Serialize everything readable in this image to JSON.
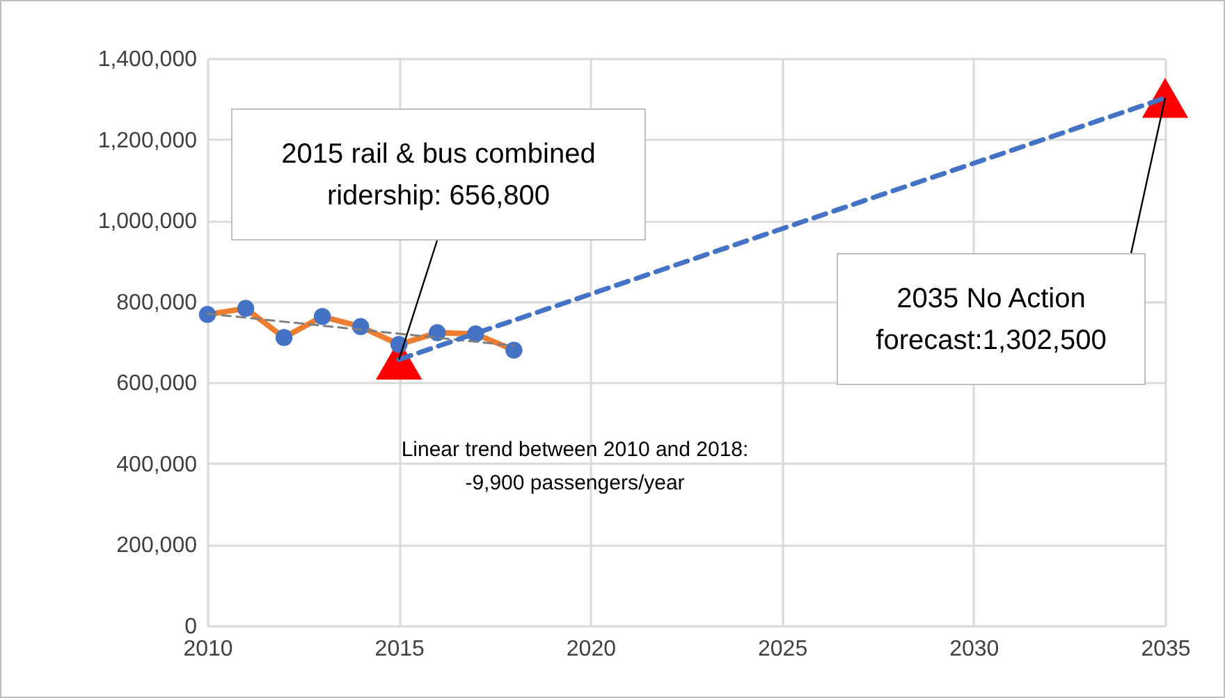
{
  "chart_data": {
    "type": "line",
    "xlim": [
      2010,
      2035
    ],
    "xticks": [
      2010,
      2015,
      2020,
      2025,
      2030,
      2035
    ],
    "ylim": [
      0,
      1400000
    ],
    "yticks": [
      0,
      {
        "value": 200000,
        "label": "200,000"
      },
      {
        "value": 400000,
        "label": "400,000"
      },
      {
        "value": 600000,
        "label": "600,000"
      },
      {
        "value": 800000,
        "label": "800,000"
      },
      {
        "value": 1000000,
        "label": "1,000,000"
      },
      {
        "value": 1200000,
        "label": "1,200,000"
      },
      {
        "value": 1400000,
        "label": "1,400,000"
      }
    ],
    "grid": true,
    "series": [
      {
        "type": "scatter",
        "color": "#ff0000",
        "marker": "triangle",
        "x": [
          2015,
          2035
        ],
        "values": [
          656800,
          1302500
        ]
      },
      {
        "color": "#ed7d31",
        "marker": "none",
        "line_style": "solid",
        "x": [
          2010,
          2011,
          2012,
          2013,
          2014,
          2015,
          2016,
          2017,
          2018
        ],
        "values": [
          768000,
          783000,
          711000,
          763000,
          738000,
          694000,
          723000,
          720000,
          680000
        ]
      },
      {
        "type": "scatter",
        "color": "#4472c4",
        "marker": "circle",
        "x": [
          2010,
          2011,
          2012,
          2013,
          2014,
          2015,
          2016,
          2017,
          2018
        ],
        "values": [
          768000,
          783000,
          711000,
          763000,
          738000,
          694000,
          723000,
          720000,
          680000
        ]
      },
      {
        "color": "#7f7f7f",
        "marker": "none",
        "line_style": "dashed",
        "x": [
          2010,
          2018
        ],
        "values": [
          770000,
          691000
        ]
      },
      {
        "color": "#4472c4",
        "marker": "none",
        "line_style": "dashed",
        "x": [
          2015,
          2035
        ],
        "values": [
          656800,
          1302500
        ]
      }
    ],
    "annotations": [
      {
        "text": "2015 rail & bus combined\nridership: 656,800",
        "x": 2015,
        "y": 656800
      },
      {
        "text": "2035 No Action\nforecast:1,302,500",
        "x": 2035,
        "y": 1302500
      },
      "Linear trend between 2010 and 2018:\n-9,900 passengers/year"
    ]
  }
}
